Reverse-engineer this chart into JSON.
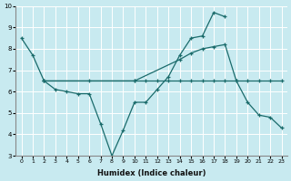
{
  "xlabel": "Humidex (Indice chaleur)",
  "xlim": [
    -0.5,
    23.5
  ],
  "ylim": [
    3,
    10
  ],
  "yticks": [
    3,
    4,
    5,
    6,
    7,
    8,
    9,
    10
  ],
  "xticks": [
    0,
    1,
    2,
    3,
    4,
    5,
    6,
    7,
    8,
    9,
    10,
    11,
    12,
    13,
    14,
    15,
    16,
    17,
    18,
    19,
    20,
    21,
    22,
    23
  ],
  "bg_color": "#c8eaf0",
  "line_color": "#1a6b6b",
  "grid_color": "#ffffff",
  "line1_x": [
    0,
    1,
    2,
    3,
    4,
    5,
    6,
    7,
    8,
    9,
    10,
    11,
    12,
    13,
    14,
    15,
    16,
    17,
    18
  ],
  "line1_y": [
    8.5,
    7.7,
    6.5,
    6.1,
    6.0,
    5.9,
    5.9,
    4.5,
    3.0,
    4.2,
    5.5,
    5.5,
    6.1,
    6.7,
    7.7,
    8.5,
    8.6,
    9.7,
    9.5
  ],
  "line2_x": [
    2,
    10,
    14,
    15,
    16,
    17,
    18,
    19,
    20,
    21,
    22,
    23
  ],
  "line2_y": [
    6.5,
    6.5,
    7.5,
    7.8,
    8.0,
    8.1,
    8.2,
    6.5,
    5.5,
    4.9,
    4.8,
    4.3
  ],
  "line3_x": [
    2,
    6,
    10,
    11,
    12,
    13,
    14,
    15,
    16,
    17,
    18,
    19,
    20,
    21,
    22,
    23
  ],
  "line3_y": [
    6.5,
    6.5,
    6.5,
    6.5,
    6.5,
    6.5,
    6.5,
    6.5,
    6.5,
    6.5,
    6.5,
    6.5,
    6.5,
    6.5,
    6.5,
    6.5
  ]
}
